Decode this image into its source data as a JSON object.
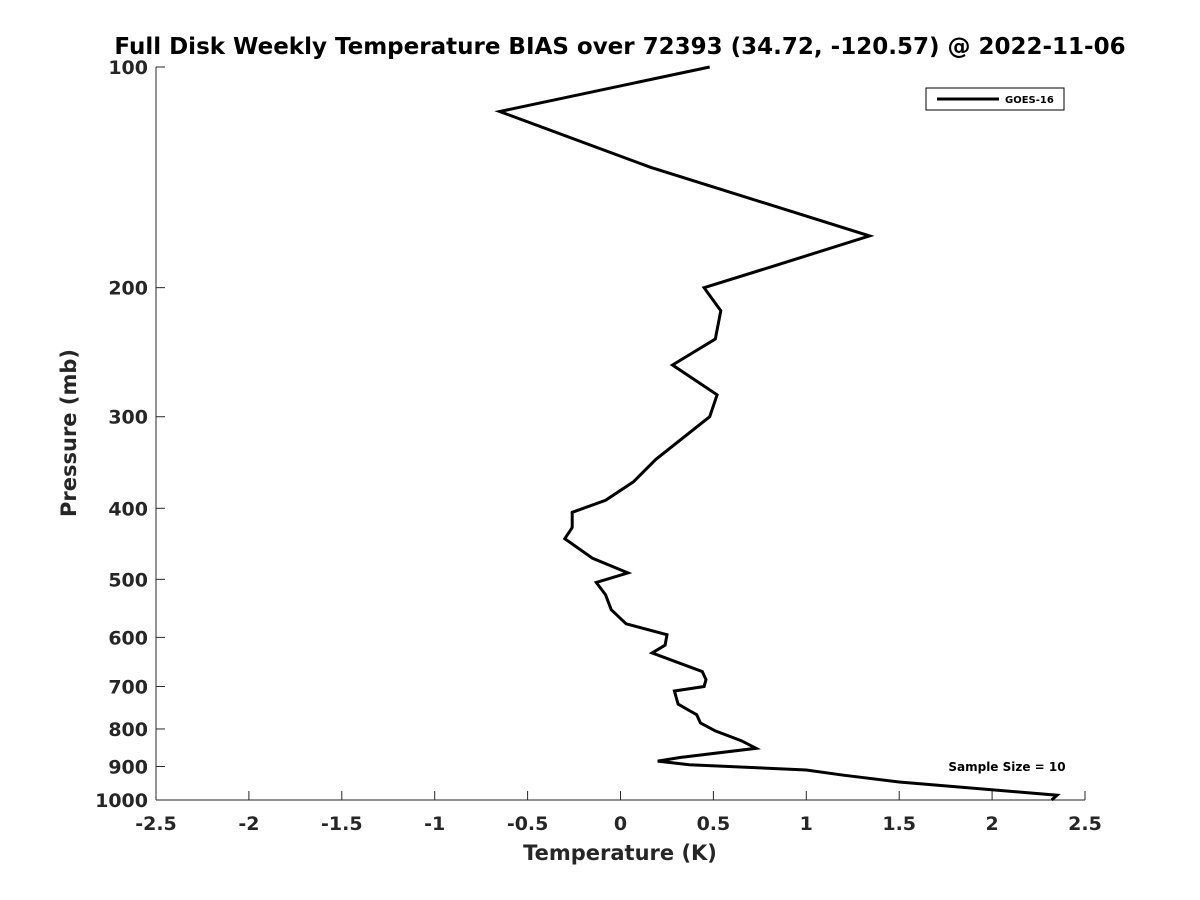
{
  "chart_data": {
    "type": "line",
    "title": "Full Disk Weekly Temperature BIAS over 72393 (34.72, -120.57) @ 2022-11-06",
    "xlabel": "Temperature (K)",
    "ylabel": "Pressure (mb)",
    "xlim": [
      -2.5,
      2.5
    ],
    "ylim": [
      100,
      1000
    ],
    "y_scale": "log",
    "y_reversed": true,
    "x_ticks": [
      "-2.5",
      "-2",
      "-1.5",
      "-1",
      "-0.5",
      "0",
      "0.5",
      "1",
      "1.5",
      "2",
      "2.5"
    ],
    "y_ticks": [
      "100",
      "200",
      "300",
      "400",
      "500",
      "600",
      "700",
      "800",
      "900",
      "1000"
    ],
    "grid": false,
    "legend_position": "top-right",
    "annotation": "Sample Size = 10",
    "line_color": "#000000",
    "series": [
      {
        "name": "GOES-16",
        "points": [
          [
            0.48,
            100
          ],
          [
            -0.65,
            115
          ],
          [
            0.16,
            137
          ],
          [
            1.34,
            170
          ],
          [
            0.82,
            187
          ],
          [
            0.45,
            200
          ],
          [
            0.54,
            215
          ],
          [
            0.51,
            235
          ],
          [
            0.28,
            255
          ],
          [
            0.52,
            280
          ],
          [
            0.48,
            300
          ],
          [
            0.19,
            343
          ],
          [
            0.07,
            368
          ],
          [
            -0.08,
            390
          ],
          [
            -0.26,
            405
          ],
          [
            -0.26,
            425
          ],
          [
            -0.3,
            440
          ],
          [
            -0.15,
            468
          ],
          [
            0.04,
            490
          ],
          [
            -0.13,
            505
          ],
          [
            -0.08,
            525
          ],
          [
            -0.05,
            550
          ],
          [
            0.03,
            575
          ],
          [
            0.25,
            595
          ],
          [
            0.24,
            615
          ],
          [
            0.17,
            630
          ],
          [
            0.44,
            668
          ],
          [
            0.46,
            685
          ],
          [
            0.45,
            700
          ],
          [
            0.29,
            710
          ],
          [
            0.31,
            740
          ],
          [
            0.37,
            755
          ],
          [
            0.41,
            765
          ],
          [
            0.43,
            785
          ],
          [
            0.51,
            805
          ],
          [
            0.65,
            830
          ],
          [
            0.73,
            850
          ],
          [
            0.32,
            875
          ],
          [
            0.2,
            885
          ],
          [
            0.37,
            895
          ],
          [
            1.0,
            910
          ],
          [
            1.2,
            925
          ],
          [
            1.5,
            945
          ],
          [
            2.35,
            985
          ],
          [
            2.32,
            1000
          ]
        ]
      }
    ]
  }
}
